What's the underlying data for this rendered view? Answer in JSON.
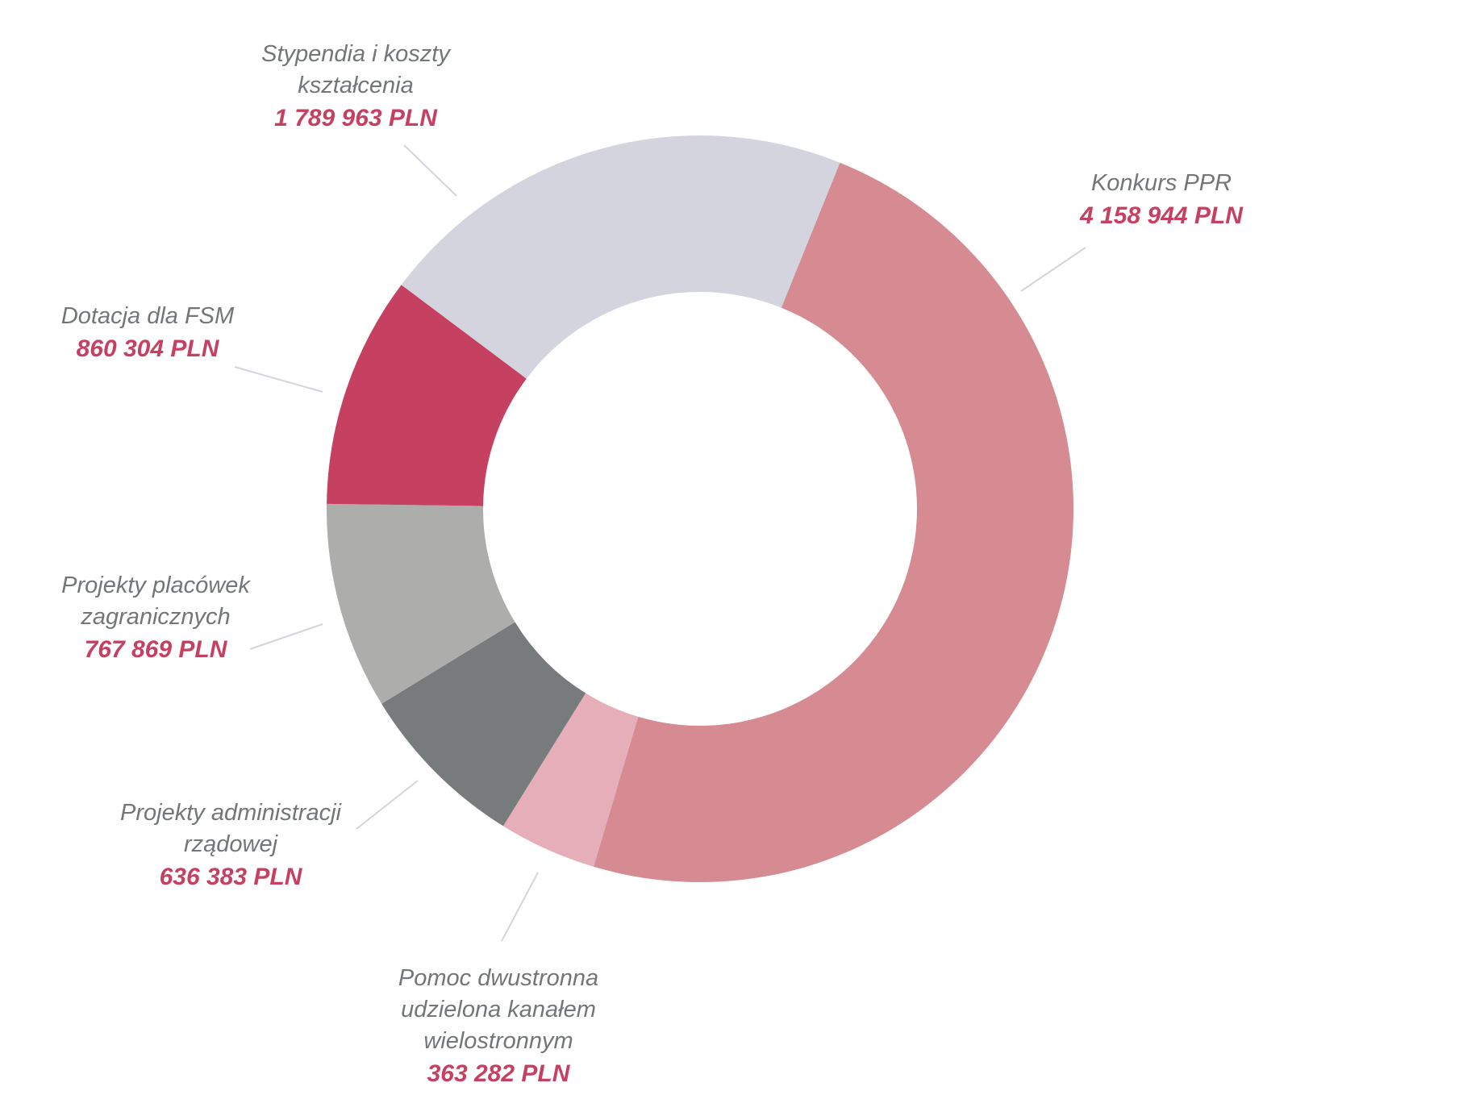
{
  "chart_data": {
    "type": "pie",
    "variant": "donut",
    "title": "",
    "unit": "PLN",
    "start_angle_deg": 22,
    "direction": "clockwise",
    "legend": "none",
    "slices": [
      {
        "name": "Konkurs PPR",
        "name_lines": [
          "Konkurs PPR"
        ],
        "value": 4158944,
        "value_label": "4 158 944 PLN",
        "color": "#D68A92"
      },
      {
        "name": "Pomoc dwustronna udzielona kanałem wielostronnym",
        "name_lines": [
          "Pomoc dwustronna",
          "udzielona kanałem",
          "wielostronnym"
        ],
        "value": 363282,
        "value_label": "363 282 PLN",
        "color": "#E6AEB8"
      },
      {
        "name": "Projekty administracji rządowej",
        "name_lines": [
          "Projekty administracji",
          "rządowej"
        ],
        "value": 636383,
        "value_label": "636 383 PLN",
        "color": "#777B7C"
      },
      {
        "name": "Projekty placówek zagranicznych",
        "name_lines": [
          "Projekty placówek",
          "zagranicznych"
        ],
        "value": 767869,
        "value_label": "767 869 PLN",
        "color": "#ADADAB"
      },
      {
        "name": "Dotacja dla FSM",
        "name_lines": [
          "Dotacja dla FSM"
        ],
        "value": 860304,
        "value_label": "860 304 PLN",
        "color": "#C64161"
      },
      {
        "name": "Stypendia i koszty kształcenia",
        "name_lines": [
          "Stypendia i koszty",
          "kształcenia"
        ],
        "value": 1789963,
        "value_label": "1 789 963 PLN",
        "color": "#D4D4DE"
      }
    ],
    "leader_color": "#D4D4DE"
  }
}
